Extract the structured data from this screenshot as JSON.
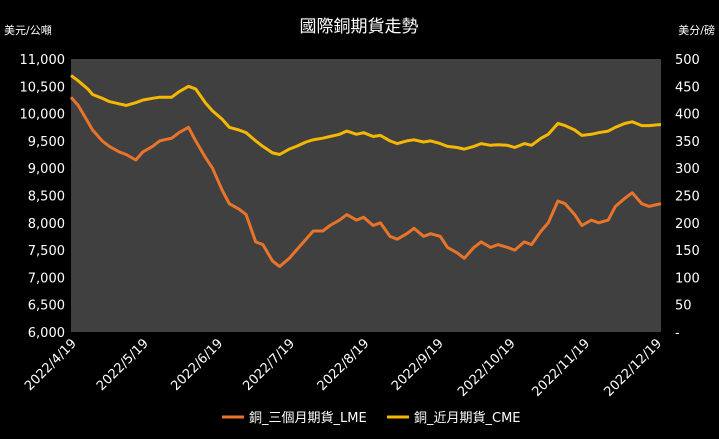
{
  "chart_data": {
    "type": "line",
    "title": "國際銅期貨走勢",
    "ylabel_left": "美元/公噸",
    "ylabel_right": "美分/磅",
    "xlabel": "",
    "x_ticks": [
      "2022/4/19",
      "2022/5/19",
      "2022/6/19",
      "2022/7/19",
      "2022/8/19",
      "2022/9/19",
      "2022/10/19",
      "2022/11/19",
      "2022/12/19"
    ],
    "y_left_ticks": [
      "6,000",
      "6,500",
      "7,000",
      "7,500",
      "8,000",
      "8,500",
      "9,000",
      "9,500",
      "10,000",
      "10,500",
      "11,000"
    ],
    "y_right_ticks": [
      "-",
      "50",
      "100",
      "150",
      "200",
      "250",
      "300",
      "350",
      "400",
      "450",
      "500"
    ],
    "ylim_left": [
      6000,
      11000
    ],
    "ylim_right": [
      0,
      500
    ],
    "x_range": [
      "2022-04-19",
      "2022-12-21"
    ],
    "grid": false,
    "legend_position": "bottom",
    "colors": {
      "plot_bg": "#404040",
      "page_bg": "#000000",
      "lme": "#E8742A",
      "cme": "#F5B800"
    },
    "series": [
      {
        "name": "銅_三個月期貨_LME",
        "axis": "left",
        "color": "#E8742A",
        "x": [
          "2022-04-19",
          "2022-04-22",
          "2022-04-26",
          "2022-04-28",
          "2022-05-02",
          "2022-05-05",
          "2022-05-09",
          "2022-05-12",
          "2022-05-16",
          "2022-05-19",
          "2022-05-23",
          "2022-05-26",
          "2022-05-31",
          "2022-06-03",
          "2022-06-07",
          "2022-06-10",
          "2022-06-14",
          "2022-06-17",
          "2022-06-21",
          "2022-06-24",
          "2022-06-28",
          "2022-07-01",
          "2022-07-05",
          "2022-07-08",
          "2022-07-12",
          "2022-07-15",
          "2022-07-19",
          "2022-07-22",
          "2022-07-26",
          "2022-07-29",
          "2022-08-02",
          "2022-08-05",
          "2022-08-09",
          "2022-08-12",
          "2022-08-16",
          "2022-08-19",
          "2022-08-23",
          "2022-08-26",
          "2022-08-30",
          "2022-09-02",
          "2022-09-06",
          "2022-09-09",
          "2022-09-13",
          "2022-09-16",
          "2022-09-20",
          "2022-09-23",
          "2022-09-27",
          "2022-09-30",
          "2022-10-04",
          "2022-10-07",
          "2022-10-11",
          "2022-10-14",
          "2022-10-18",
          "2022-10-21",
          "2022-10-25",
          "2022-10-28",
          "2022-11-01",
          "2022-11-04",
          "2022-11-08",
          "2022-11-11",
          "2022-11-15",
          "2022-11-18",
          "2022-11-22",
          "2022-11-25",
          "2022-11-29",
          "2022-12-02",
          "2022-12-06",
          "2022-12-09",
          "2022-12-13",
          "2022-12-16",
          "2022-12-21"
        ],
        "values": [
          10300,
          10150,
          9850,
          9700,
          9500,
          9400,
          9300,
          9250,
          9150,
          9300,
          9400,
          9500,
          9550,
          9650,
          9750,
          9500,
          9200,
          9000,
          8600,
          8350,
          8250,
          8150,
          7650,
          7600,
          7300,
          7200,
          7350,
          7500,
          7700,
          7850,
          7850,
          7950,
          8050,
          8150,
          8050,
          8100,
          7950,
          8000,
          7750,
          7700,
          7800,
          7900,
          7750,
          7800,
          7750,
          7550,
          7450,
          7350,
          7550,
          7650,
          7550,
          7600,
          7550,
          7500,
          7650,
          7600,
          7850,
          8000,
          8400,
          8350,
          8150,
          7950,
          8050,
          8000,
          8050,
          8300,
          8450,
          8550,
          8350,
          8300,
          8350
        ]
      },
      {
        "name": "銅_近月期貨_CME",
        "axis": "right",
        "color": "#F5B800",
        "x": [
          "2022-04-19",
          "2022-04-22",
          "2022-04-26",
          "2022-04-28",
          "2022-05-02",
          "2022-05-05",
          "2022-05-09",
          "2022-05-12",
          "2022-05-16",
          "2022-05-19",
          "2022-05-23",
          "2022-05-26",
          "2022-05-31",
          "2022-06-03",
          "2022-06-07",
          "2022-06-10",
          "2022-06-14",
          "2022-06-17",
          "2022-06-21",
          "2022-06-24",
          "2022-06-28",
          "2022-07-01",
          "2022-07-05",
          "2022-07-08",
          "2022-07-12",
          "2022-07-15",
          "2022-07-19",
          "2022-07-22",
          "2022-07-26",
          "2022-07-29",
          "2022-08-02",
          "2022-08-05",
          "2022-08-09",
          "2022-08-12",
          "2022-08-16",
          "2022-08-19",
          "2022-08-23",
          "2022-08-26",
          "2022-08-30",
          "2022-09-02",
          "2022-09-06",
          "2022-09-09",
          "2022-09-13",
          "2022-09-16",
          "2022-09-20",
          "2022-09-23",
          "2022-09-27",
          "2022-09-30",
          "2022-10-04",
          "2022-10-07",
          "2022-10-11",
          "2022-10-14",
          "2022-10-18",
          "2022-10-21",
          "2022-10-25",
          "2022-10-28",
          "2022-11-01",
          "2022-11-04",
          "2022-11-08",
          "2022-11-11",
          "2022-11-15",
          "2022-11-18",
          "2022-11-22",
          "2022-11-25",
          "2022-11-29",
          "2022-12-02",
          "2022-12-06",
          "2022-12-09",
          "2022-12-13",
          "2022-12-16",
          "2022-12-21"
        ],
        "values": [
          470,
          460,
          445,
          435,
          428,
          422,
          418,
          415,
          420,
          425,
          428,
          430,
          430,
          440,
          450,
          445,
          420,
          405,
          390,
          375,
          370,
          365,
          350,
          340,
          328,
          325,
          335,
          340,
          348,
          352,
          355,
          358,
          362,
          368,
          362,
          365,
          358,
          360,
          350,
          345,
          350,
          352,
          348,
          350,
          345,
          340,
          338,
          335,
          340,
          345,
          342,
          343,
          342,
          338,
          345,
          342,
          355,
          362,
          382,
          378,
          370,
          360,
          362,
          365,
          368,
          375,
          382,
          385,
          378,
          378,
          380
        ]
      }
    ]
  },
  "legend": [
    {
      "label": "銅_三個月期貨_LME",
      "color": "#E8742A"
    },
    {
      "label": "銅_近月期貨_CME",
      "color": "#F5B800"
    }
  ]
}
